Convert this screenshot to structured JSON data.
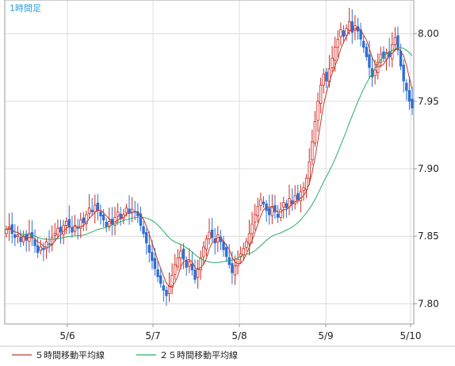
{
  "chart_data": {
    "type": "candlestick",
    "title": "1時間足",
    "x_ticks": [
      "5/6",
      "5/7",
      "5/8",
      "5/9",
      "5/10"
    ],
    "y_ticks": [
      "7.80",
      "7.85",
      "7.90",
      "7.95",
      "8.00"
    ],
    "ylim": [
      7.785,
      8.025
    ],
    "grid": true,
    "legend_position": "bottom-left",
    "colors": {
      "up": "#d0281f",
      "down": "#2f6fd6",
      "ma5": "#c0392b",
      "ma25": "#27ae60",
      "grid": "#dcdcdc",
      "frame": "#9a9a9a"
    },
    "series": [
      {
        "name": "5時間移動平均線",
        "type": "line",
        "color": "#c0392b"
      },
      {
        "name": "２５時間移動平均線",
        "type": "line",
        "color": "#27ae60"
      }
    ],
    "close": [
      7.855,
      7.857,
      7.852,
      7.849,
      7.851,
      7.846,
      7.85,
      7.847,
      7.852,
      7.849,
      7.843,
      7.838,
      7.842,
      7.84,
      7.846,
      7.844,
      7.849,
      7.852,
      7.856,
      7.853,
      7.858,
      7.861,
      7.857,
      7.853,
      7.858,
      7.856,
      7.862,
      7.86,
      7.866,
      7.871,
      7.868,
      7.873,
      7.869,
      7.865,
      7.862,
      7.857,
      7.861,
      7.859,
      7.864,
      7.868,
      7.863,
      7.866,
      7.871,
      7.867,
      7.87,
      7.868,
      7.865,
      7.858,
      7.852,
      7.845,
      7.838,
      7.832,
      7.826,
      7.82,
      7.815,
      7.81,
      7.806,
      7.813,
      7.821,
      7.829,
      7.834,
      7.839,
      7.833,
      7.827,
      7.831,
      7.825,
      7.818,
      7.826,
      7.834,
      7.842,
      7.848,
      7.853,
      7.849,
      7.845,
      7.851,
      7.846,
      7.84,
      7.835,
      7.829,
      7.823,
      7.828,
      7.833,
      7.837,
      7.841,
      7.846,
      7.852,
      7.859,
      7.866,
      7.872,
      7.877,
      7.874,
      7.869,
      7.866,
      7.872,
      7.868,
      7.864,
      7.87,
      7.875,
      7.871,
      7.878,
      7.874,
      7.88,
      7.877,
      7.883,
      7.886,
      7.893,
      7.905,
      7.92,
      7.935,
      7.95,
      7.962,
      7.97,
      7.965,
      7.974,
      7.982,
      7.99,
      7.996,
      8.003,
      7.998,
      8.004,
      8.009,
      8.001,
      8.006,
      8.002,
      7.996,
      7.99,
      7.983,
      7.975,
      7.968,
      7.973,
      7.979,
      7.985,
      7.982,
      7.986,
      7.983,
      7.992,
      7.997,
      7.988,
      7.976,
      7.965,
      7.958,
      7.95,
      7.945
    ]
  },
  "legend": {
    "ma5_label": "５時間移動平均線",
    "ma25_label": "２５時間移動平均線"
  }
}
